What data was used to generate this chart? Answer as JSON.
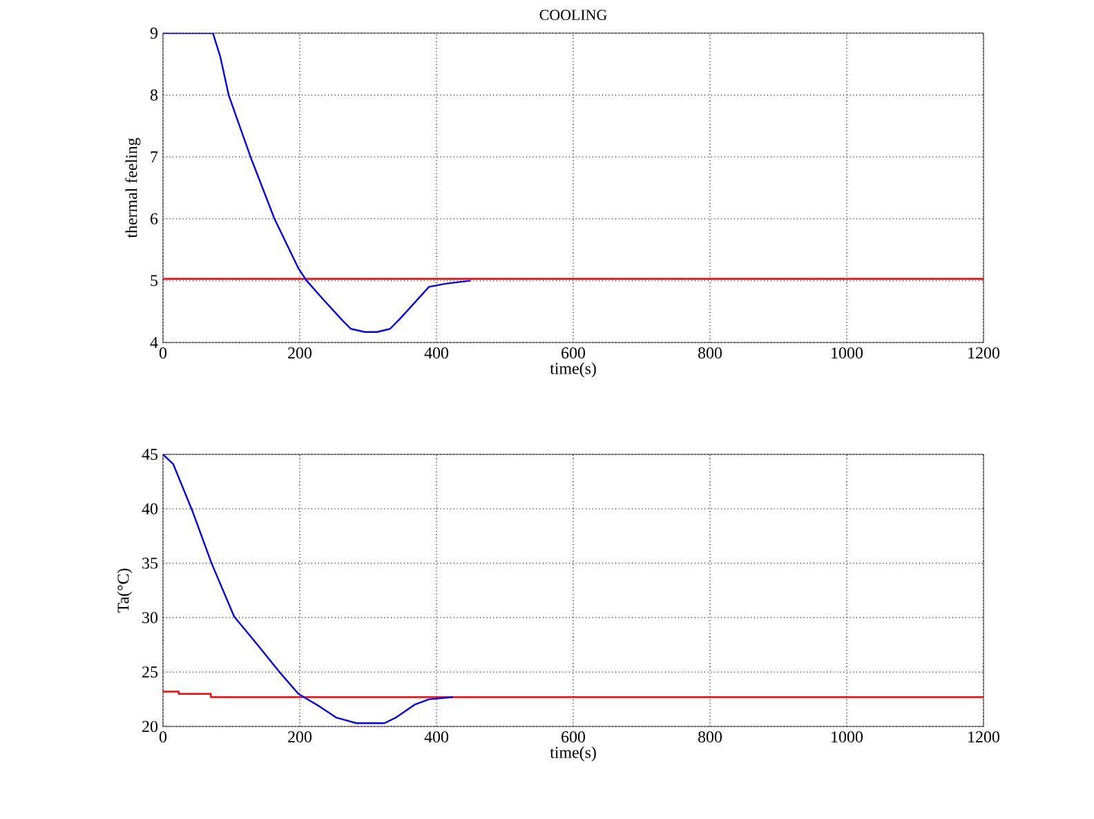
{
  "chart_data": [
    {
      "type": "line",
      "title": "COOLING",
      "xlabel": "time(s)",
      "ylabel": "thermal feeling",
      "xlim": [
        0,
        1200
      ],
      "ylim": [
        4,
        9
      ],
      "xticks": [
        0,
        200,
        400,
        600,
        800,
        1000,
        1200
      ],
      "yticks": [
        4,
        5,
        6,
        7,
        8,
        9
      ],
      "grid": true,
      "line_style": "solid",
      "marker": "none",
      "series": [
        {
          "color": "#0000ff",
          "x": [
            0,
            73,
            84,
            96,
            128,
            163,
            198,
            210,
            234,
            263,
            275,
            295,
            313,
            332,
            348,
            389,
            413,
            450
          ],
          "values": [
            9,
            9,
            8.61,
            8.0,
            7.0,
            6.0,
            5.2,
            5.0,
            4.7,
            4.35,
            4.22,
            4.17,
            4.17,
            4.22,
            4.4,
            4.9,
            4.95,
            5.0
          ]
        },
        {
          "color": "#ff0000",
          "x": [
            0,
            1200
          ],
          "values": [
            5.03,
            5.03
          ]
        }
      ]
    },
    {
      "type": "line",
      "xlabel": "time(s)",
      "ylabel": "Ta(°C)",
      "xlim": [
        0,
        1200
      ],
      "ylim": [
        20,
        45
      ],
      "xticks": [
        0,
        200,
        400,
        600,
        800,
        1000,
        1200
      ],
      "yticks": [
        20,
        25,
        30,
        35,
        40,
        45
      ],
      "grid": true,
      "line_style": "solid",
      "marker": "none",
      "series": [
        {
          "color": "#0000ff",
          "x": [
            0,
            15,
            43,
            71,
            104,
            137,
            169,
            198,
            230,
            254,
            283,
            324,
            340,
            368,
            389,
            424
          ],
          "values": [
            45,
            44.1,
            39.8,
            35.0,
            30.1,
            27.6,
            25.1,
            23.0,
            21.8,
            20.8,
            20.3,
            20.3,
            20.8,
            22.0,
            22.5,
            22.7
          ]
        },
        {
          "color": "#ff0000",
          "x": [
            0,
            23,
            23,
            70,
            70,
            1200
          ],
          "values": [
            23.2,
            23.2,
            23.0,
            23.0,
            22.7,
            22.7
          ]
        }
      ]
    }
  ]
}
